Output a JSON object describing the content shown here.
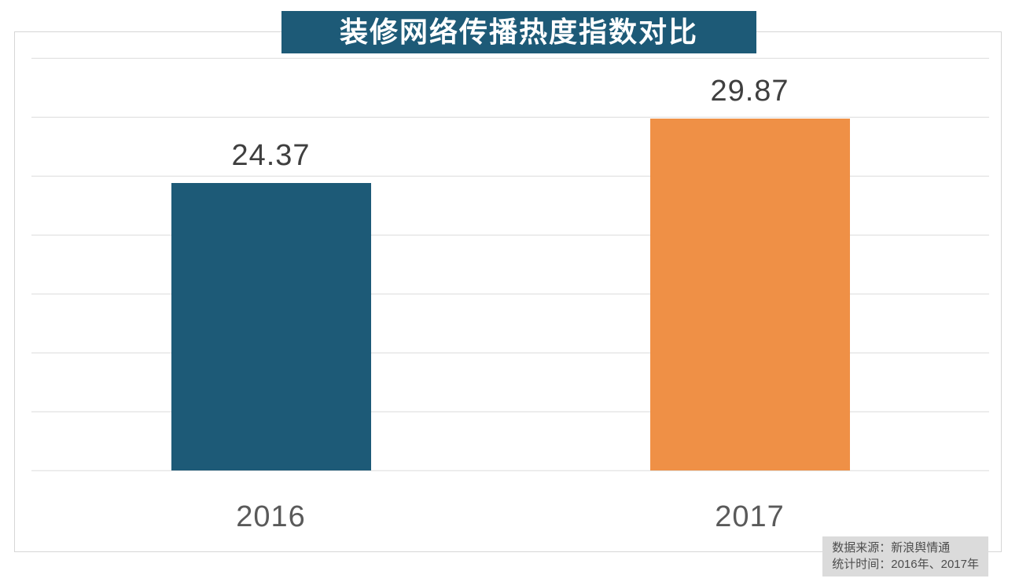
{
  "title": "装修网络传播热度指数对比",
  "source_note": {
    "line1": "数据来源：新浪舆情通",
    "line2": "统计时间：2016年、2017年"
  },
  "colors": {
    "title_bg": "#1d5a77",
    "title_text": "#ffffff",
    "gridline": "#dcdcdc",
    "frame_border": "#d6d6d6",
    "value_label_text": "#3f3f3f",
    "category_label_text": "#5a5a5a",
    "source_bg": "#dbdbdb",
    "source_text": "#4d4d4d"
  },
  "chart_data": {
    "type": "bar",
    "title": "装修网络传播热度指数对比",
    "categories": [
      "2016",
      "2017"
    ],
    "values": [
      24.37,
      29.87
    ],
    "data_labels": [
      "24.37",
      "29.87"
    ],
    "series_colors": [
      "#1d5a77",
      "#ef9046"
    ],
    "xlabel": "",
    "ylabel": "",
    "ylim": [
      0,
      35
    ],
    "gridline_interval": 5,
    "grid": true,
    "y_tick_labels_shown": false,
    "legend": false,
    "legend_position": "none"
  }
}
